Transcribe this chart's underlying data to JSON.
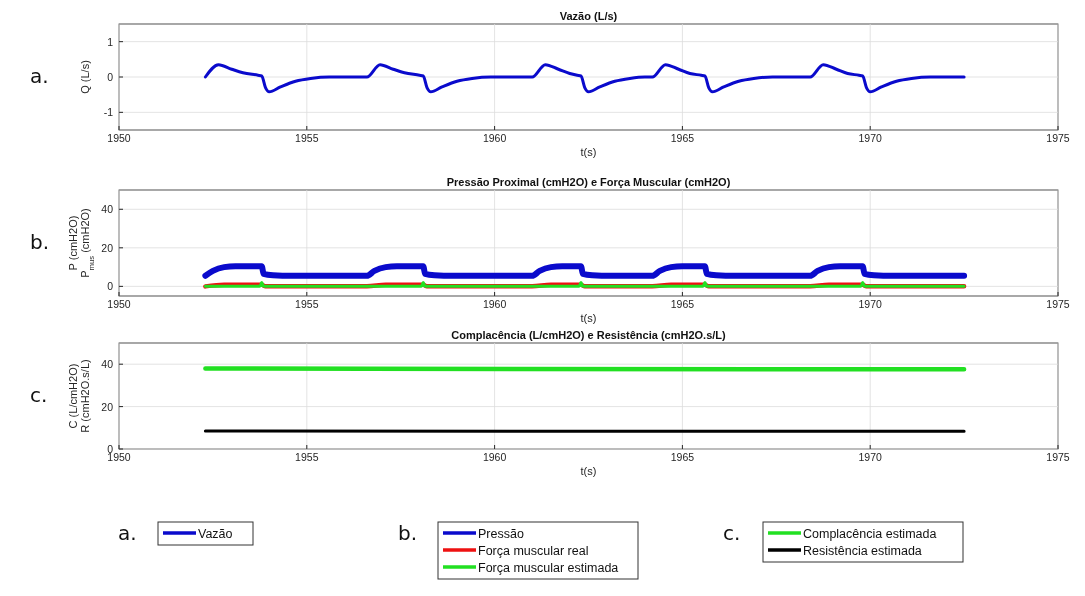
{
  "chart_data": [
    {
      "type": "line",
      "title": "Vazão (L/s)",
      "xlabel": "t(s)",
      "ylabel": "Q (L/s)",
      "annotations": [
        "a."
      ],
      "xlim": [
        1950,
        1975
      ],
      "xticks": [
        1950,
        1955,
        1960,
        1965,
        1970,
        1975
      ],
      "ylim": [
        -1.5,
        1.5
      ],
      "yticks": [
        -1,
        0,
        1
      ],
      "grid": true,
      "legend": "bottom",
      "line_style": "solid",
      "marker": "none",
      "series": [
        {
          "name": "Vazão",
          "color": "#0a0acc",
          "x": [
            1952.3,
            1952.65,
            1953.0,
            1953.3,
            1953.7,
            1953.8,
            1953.9,
            1954.0,
            1954.3,
            1954.7,
            1955.1,
            1955.6,
            1956.6,
            1956.95,
            1957.3,
            1957.6,
            1958.0,
            1958.1,
            1958.2,
            1958.3,
            1958.6,
            1959.0,
            1959.4,
            1959.9,
            1961.0,
            1961.35,
            1961.7,
            1962.0,
            1962.2,
            1962.3,
            1962.4,
            1962.5,
            1962.8,
            1963.2,
            1963.6,
            1964.0,
            1964.2,
            1964.55,
            1964.9,
            1965.2,
            1965.5,
            1965.6,
            1965.7,
            1965.8,
            1966.1,
            1966.5,
            1966.9,
            1967.4,
            1968.4,
            1968.75,
            1969.1,
            1969.4,
            1969.7,
            1969.8,
            1969.9,
            1970.0,
            1970.3,
            1970.7,
            1971.1,
            1971.6,
            1972.5
          ],
          "values": [
            0,
            0.35,
            0.22,
            0.12,
            0.05,
            0.03,
            -0.3,
            -0.42,
            -0.28,
            -0.12,
            -0.04,
            0,
            0,
            0.35,
            0.22,
            0.12,
            0.05,
            0.03,
            -0.3,
            -0.42,
            -0.28,
            -0.12,
            -0.04,
            0,
            0,
            0.35,
            0.22,
            0.1,
            0.05,
            0.03,
            -0.3,
            -0.42,
            -0.28,
            -0.12,
            -0.04,
            0,
            0,
            0.35,
            0.22,
            0.1,
            0.05,
            0.03,
            -0.3,
            -0.42,
            -0.28,
            -0.12,
            -0.04,
            0,
            0,
            0.35,
            0.22,
            0.1,
            0.05,
            0.03,
            -0.3,
            -0.42,
            -0.28,
            -0.12,
            -0.04,
            0,
            0
          ]
        }
      ]
    },
    {
      "type": "line",
      "title": "Pressão Proximal (cmH2O) e Força Muscular (cmH2O)",
      "xlabel": "t(s)",
      "ylabel": "P (cmH2O)\nP$_{mus}$ (cmH2O)",
      "annotations": [
        "b."
      ],
      "xlim": [
        1950,
        1975
      ],
      "xticks": [
        1950,
        1955,
        1960,
        1965,
        1970,
        1975
      ],
      "ylim": [
        -5,
        50
      ],
      "yticks": [
        0,
        20,
        40
      ],
      "grid": true,
      "legend": "bottom",
      "line_style": "solid",
      "marker": "none",
      "series": [
        {
          "name": "Pressão",
          "color": "#0a0acc",
          "x": [
            1952.3,
            1952.5,
            1952.8,
            1953.1,
            1953.8,
            1953.85,
            1954.1,
            1954.6,
            1956.6,
            1956.8,
            1957.1,
            1957.4,
            1958.1,
            1958.15,
            1958.4,
            1958.9,
            1961.0,
            1961.2,
            1961.5,
            1961.8,
            1962.3,
            1962.35,
            1962.6,
            1963.1,
            1964.2,
            1964.4,
            1964.7,
            1965.0,
            1965.6,
            1965.65,
            1965.9,
            1966.4,
            1968.4,
            1968.6,
            1968.9,
            1969.2,
            1969.8,
            1969.85,
            1970.1,
            1970.6,
            1972.5
          ],
          "values": [
            5.5,
            8,
            10,
            10.5,
            10.5,
            6.5,
            5.8,
            5.5,
            5.5,
            8,
            10,
            10.5,
            10.5,
            6.5,
            5.8,
            5.5,
            5.5,
            8,
            10,
            10.5,
            10.5,
            6.5,
            5.8,
            5.5,
            5.5,
            8,
            10,
            10.5,
            10.5,
            6.5,
            5.8,
            5.5,
            5.5,
            8,
            10,
            10.5,
            10.5,
            6.5,
            5.8,
            5.5,
            5.5
          ]
        },
        {
          "name": "Força muscular real",
          "color": "#ee1111",
          "x": [
            1952.3,
            1952.8,
            1953.8,
            1953.9,
            1956.6,
            1957.1,
            1958.1,
            1958.2,
            1961.0,
            1961.5,
            1962.3,
            1962.4,
            1964.2,
            1964.7,
            1965.6,
            1965.7,
            1968.4,
            1968.9,
            1969.8,
            1969.9,
            1972.5
          ],
          "values": [
            0,
            0.8,
            0.8,
            0,
            0,
            0.8,
            0.8,
            0,
            0,
            0.8,
            0.8,
            0,
            0,
            0.8,
            0.8,
            0,
            0,
            0.8,
            0.8,
            0,
            0
          ]
        },
        {
          "name": "Força muscular estimada",
          "color": "#22e022",
          "x": [
            1952.3,
            1953.75,
            1953.8,
            1953.85,
            1956.6,
            1958.05,
            1958.1,
            1958.15,
            1961.0,
            1962.25,
            1962.3,
            1962.35,
            1964.2,
            1965.55,
            1965.6,
            1965.65,
            1968.4,
            1969.75,
            1969.8,
            1969.85,
            1972.5
          ],
          "values": [
            0,
            0,
            2,
            0,
            0,
            0,
            2,
            0,
            0,
            0,
            2,
            0,
            0,
            0,
            2,
            0,
            0,
            0,
            2,
            0,
            0
          ]
        }
      ]
    },
    {
      "type": "line",
      "title": "Complacência (L/cmH2O) e Resistência (cmH2O.s/L)",
      "xlabel": "t(s)",
      "ylabel": "C (L/cmH2O)\nR (cmH2O.s/L)",
      "annotations": [
        "c."
      ],
      "xlim": [
        1950,
        1975
      ],
      "xticks": [
        1950,
        1955,
        1960,
        1965,
        1970,
        1975
      ],
      "ylim": [
        0,
        50
      ],
      "yticks": [
        0,
        20,
        40
      ],
      "grid": true,
      "legend": "bottom",
      "line_style": "solid",
      "marker": "none",
      "series": [
        {
          "name": "Complacência estimada",
          "color": "#22e022",
          "x": [
            1952.3,
            1956.6,
            1968.4,
            1972.5
          ],
          "values": [
            38,
            37.8,
            37.6,
            37.6
          ]
        },
        {
          "name": "Resistência estimada",
          "color": "#000000",
          "x": [
            1952.3,
            1960.9,
            1972.5
          ],
          "values": [
            8.5,
            8.4,
            8.4
          ]
        }
      ]
    }
  ]
}
